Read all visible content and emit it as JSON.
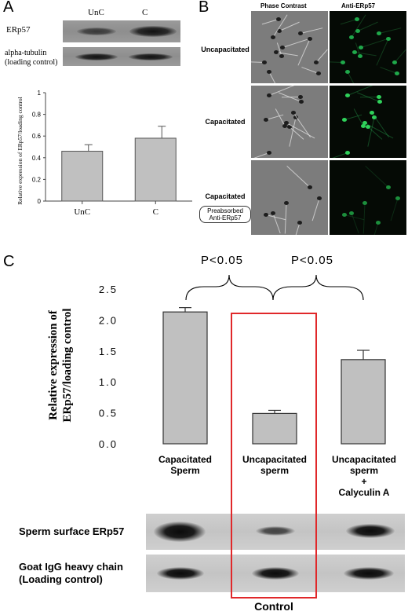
{
  "panelA": {
    "letter": "A",
    "blot": {
      "lanes": [
        "UnC",
        "C"
      ],
      "row1_label": "ERp57",
      "row2_label_line1": "alpha-tubulin",
      "row2_label_line2": "(loading control)"
    }
  },
  "panelB": {
    "letter": "B",
    "col_headers": [
      "Phase Contrast",
      "Anti-ERp57"
    ],
    "rows": [
      "Uncapacitated",
      "Capacitated",
      "Capacitated"
    ],
    "preabsorbed_label_line1": "Preabsorbed",
    "preabsorbed_label_line2": "Anti-ERp57"
  },
  "panelC": {
    "letter": "C",
    "significance": [
      "P<0.05",
      "P<0.05"
    ],
    "ylabel_line1": "Relative expression of",
    "ylabel_line2": "ERp57/loading control",
    "category_labels": [
      [
        "Capacitated",
        "Sperm"
      ],
      [
        "Uncapacitated",
        "sperm"
      ],
      [
        "Uncapacitated",
        "sperm",
        "+",
        "Calyculin A"
      ]
    ],
    "blot_row1": "Sperm surface ERp57",
    "blot_row2_line1": "Goat IgG heavy chain",
    "blot_row2_line2": "(Loading control)",
    "highlight_label": "Control",
    "highlight_color": "#e0282a"
  },
  "chart_data": [
    {
      "type": "bar",
      "categories": [
        "UnC",
        "C"
      ],
      "values": [
        0.46,
        0.58
      ],
      "errors": [
        0.06,
        0.11
      ],
      "title": "",
      "xlabel": "",
      "ylabel": "Relative expression of ERp57/loading control",
      "ylim": [
        0,
        1
      ],
      "yticks": [
        "0",
        "0.2",
        "0.4",
        "0.6",
        "0.8",
        "1"
      ],
      "bar_color": "#c0c0c0",
      "grid": false
    },
    {
      "type": "bar",
      "categories": [
        "Capacitated Sperm",
        "Uncapacitated sperm",
        "Uncapacitated sperm + Calyculin A"
      ],
      "values": [
        2.13,
        0.49,
        1.36
      ],
      "errors": [
        0.07,
        0.05,
        0.15
      ],
      "title": "",
      "xlabel": "",
      "ylabel": "Relative expression of ERp57/loading control",
      "ylim": [
        0,
        2.5
      ],
      "yticks": [
        "0.0",
        "0.5",
        "1.0",
        "1.5",
        "2.0",
        "2.5"
      ],
      "bar_color": "#c0c0c0",
      "grid": false
    }
  ]
}
